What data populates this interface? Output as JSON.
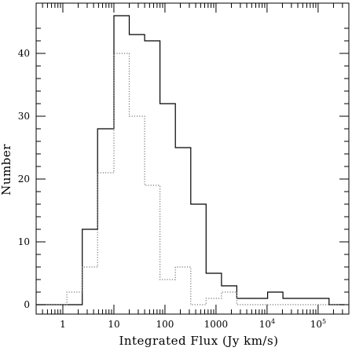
{
  "chart_data": {
    "type": "histogram",
    "xlabel": "Integrated Flux (Jy km/s)",
    "ylabel": "Number",
    "x_scale": "log",
    "xlim": [
      0.3,
      400000
    ],
    "ylim": [
      -1.5,
      48
    ],
    "x_tick_labels": [
      {
        "value": 1,
        "label": "1"
      },
      {
        "value": 10,
        "label": "10"
      },
      {
        "value": 100,
        "label": "100"
      },
      {
        "value": 1000,
        "label": "1000"
      },
      {
        "value": 10000,
        "label": "10",
        "exponent": "4"
      },
      {
        "value": 100000,
        "label": "10",
        "exponent": "5"
      }
    ],
    "y_ticks": [
      0,
      10,
      20,
      30,
      40
    ],
    "bin_edges": [
      0.3,
      1.2,
      2.4,
      4.8,
      10,
      20,
      40,
      80,
      160,
      320,
      640,
      1280,
      2560,
      5120,
      10240,
      20480,
      40960,
      81920,
      163840,
      327680
    ],
    "series": [
      {
        "style": "solid",
        "color": "#000000",
        "values": [
          0,
          0,
          12,
          28,
          46,
          43,
          42,
          32,
          25,
          16,
          5,
          3,
          1,
          1,
          2,
          1,
          1,
          1,
          0
        ]
      },
      {
        "style": "dotted",
        "color": "#777777",
        "values": [
          0,
          2,
          6,
          21,
          40,
          30,
          19,
          4,
          6,
          0,
          1,
          2,
          0,
          0,
          0,
          0,
          0,
          0,
          0
        ]
      }
    ]
  }
}
